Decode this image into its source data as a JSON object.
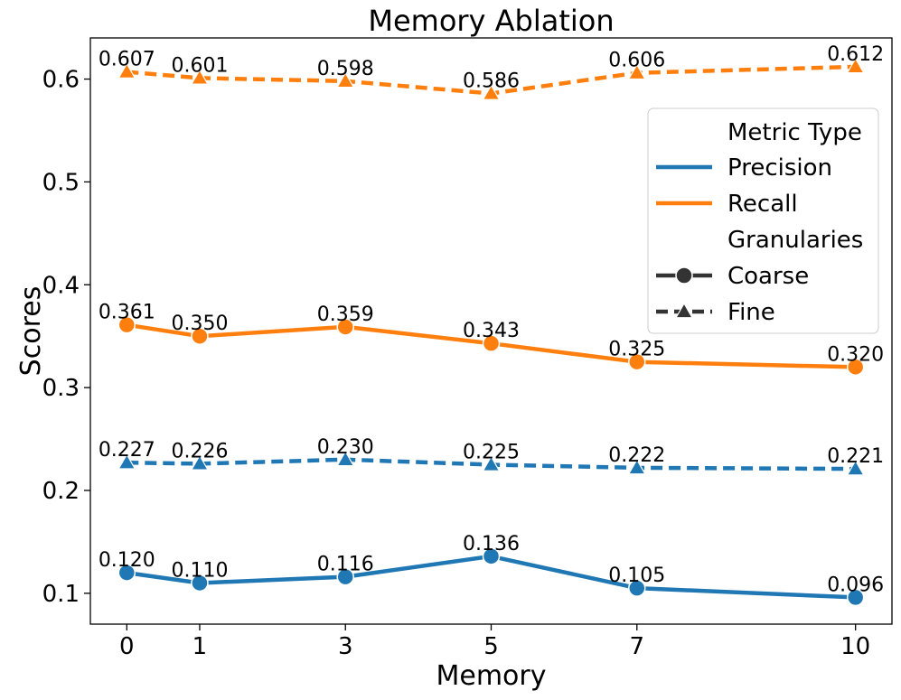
{
  "chart_data": {
    "type": "line",
    "title": "Memory Ablation",
    "xlabel": "Memory",
    "ylabel": "Scores",
    "x": [
      0,
      1,
      3,
      5,
      7,
      10
    ],
    "x_ticks": [
      "0",
      "1",
      "3",
      "5",
      "7",
      "10"
    ],
    "xlim": [
      -0.5,
      10.5
    ],
    "ylim": [
      0.07,
      0.64
    ],
    "y_ticks": [
      0.1,
      0.2,
      0.3,
      0.4,
      0.5,
      0.6
    ],
    "y_tick_labels": [
      "0.1",
      "0.2",
      "0.3",
      "0.4",
      "0.5",
      "0.6"
    ],
    "grid": false,
    "series": [
      {
        "name": "Precision (Coarse)",
        "metric": "Precision",
        "granularity": "Coarse",
        "color": "#1f77b4",
        "dashed": false,
        "marker": "circle",
        "values": [
          0.12,
          0.11,
          0.116,
          0.136,
          0.105,
          0.096
        ],
        "labels": [
          "0.120",
          "0.110",
          "0.116",
          "0.136",
          "0.105",
          "0.096"
        ]
      },
      {
        "name": "Precision (Fine)",
        "metric": "Precision",
        "granularity": "Fine",
        "color": "#1f77b4",
        "dashed": true,
        "marker": "triangle",
        "values": [
          0.227,
          0.226,
          0.23,
          0.225,
          0.222,
          0.221
        ],
        "labels": [
          "0.227",
          "0.226",
          "0.230",
          "0.225",
          "0.222",
          "0.221"
        ]
      },
      {
        "name": "Recall (Coarse)",
        "metric": "Recall",
        "granularity": "Coarse",
        "color": "#ff7f0e",
        "dashed": false,
        "marker": "circle",
        "values": [
          0.361,
          0.35,
          0.359,
          0.343,
          0.325,
          0.32
        ],
        "labels": [
          "0.361",
          "0.350",
          "0.359",
          "0.343",
          "0.325",
          "0.320"
        ]
      },
      {
        "name": "Recall (Fine)",
        "metric": "Recall",
        "granularity": "Fine",
        "color": "#ff7f0e",
        "dashed": true,
        "marker": "triangle",
        "values": [
          0.607,
          0.601,
          0.598,
          0.586,
          0.606,
          0.612
        ],
        "labels": [
          "0.607",
          "0.601",
          "0.598",
          "0.586",
          "0.606",
          "0.612"
        ]
      }
    ],
    "legend": {
      "placement": "center-right",
      "metric_header": "Metric Type",
      "metric_items": [
        {
          "label": "Precision",
          "color": "#1f77b4"
        },
        {
          "label": "Recall",
          "color": "#ff7f0e"
        }
      ],
      "granularity_header": "Granularies",
      "granularity_items": [
        {
          "label": "Coarse",
          "marker": "circle",
          "dashed": false,
          "color": "#333333"
        },
        {
          "label": "Fine",
          "marker": "triangle",
          "dashed": true,
          "color": "#333333"
        }
      ]
    }
  }
}
